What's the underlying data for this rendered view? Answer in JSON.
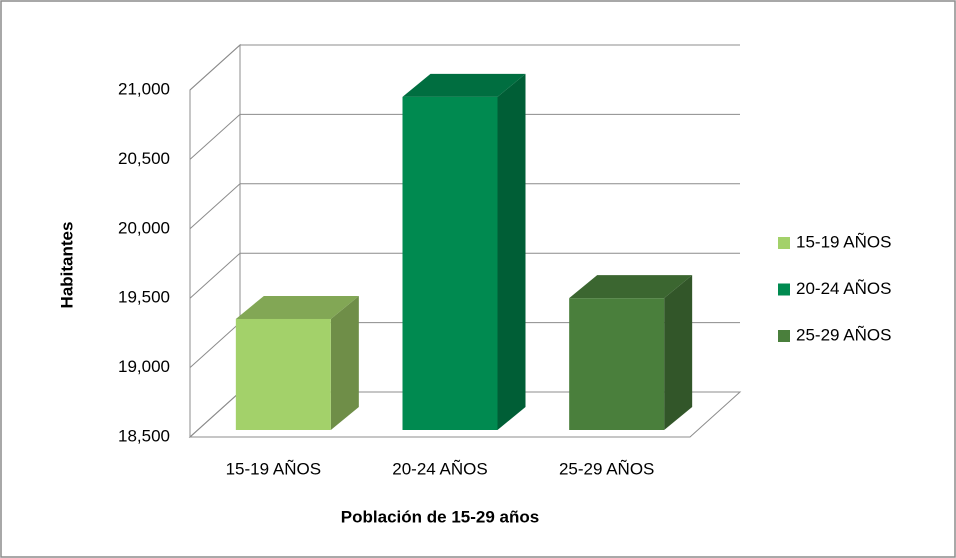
{
  "chart_data": {
    "type": "bar3d",
    "x_label": "Población de 15-29 años",
    "y_label": "Habitantes",
    "categories": [
      "15-19 AÑOS",
      "20-24 AÑOS",
      "25-29 AÑOS"
    ],
    "values": [
      19300,
      20900,
      19450
    ],
    "colors": [
      "#a3d16a",
      "#008a50",
      "#4a7f3c"
    ],
    "ylim": [
      18500,
      21000
    ],
    "yticks": [
      {
        "value": 18500,
        "label": "18,500"
      },
      {
        "value": 19000,
        "label": "19,000"
      },
      {
        "value": 19500,
        "label": "19,500"
      },
      {
        "value": 20000,
        "label": "20,000"
      },
      {
        "value": 20500,
        "label": "20,500"
      },
      {
        "value": 21000,
        "label": "21,000"
      }
    ],
    "grid": true,
    "legend": "right"
  }
}
